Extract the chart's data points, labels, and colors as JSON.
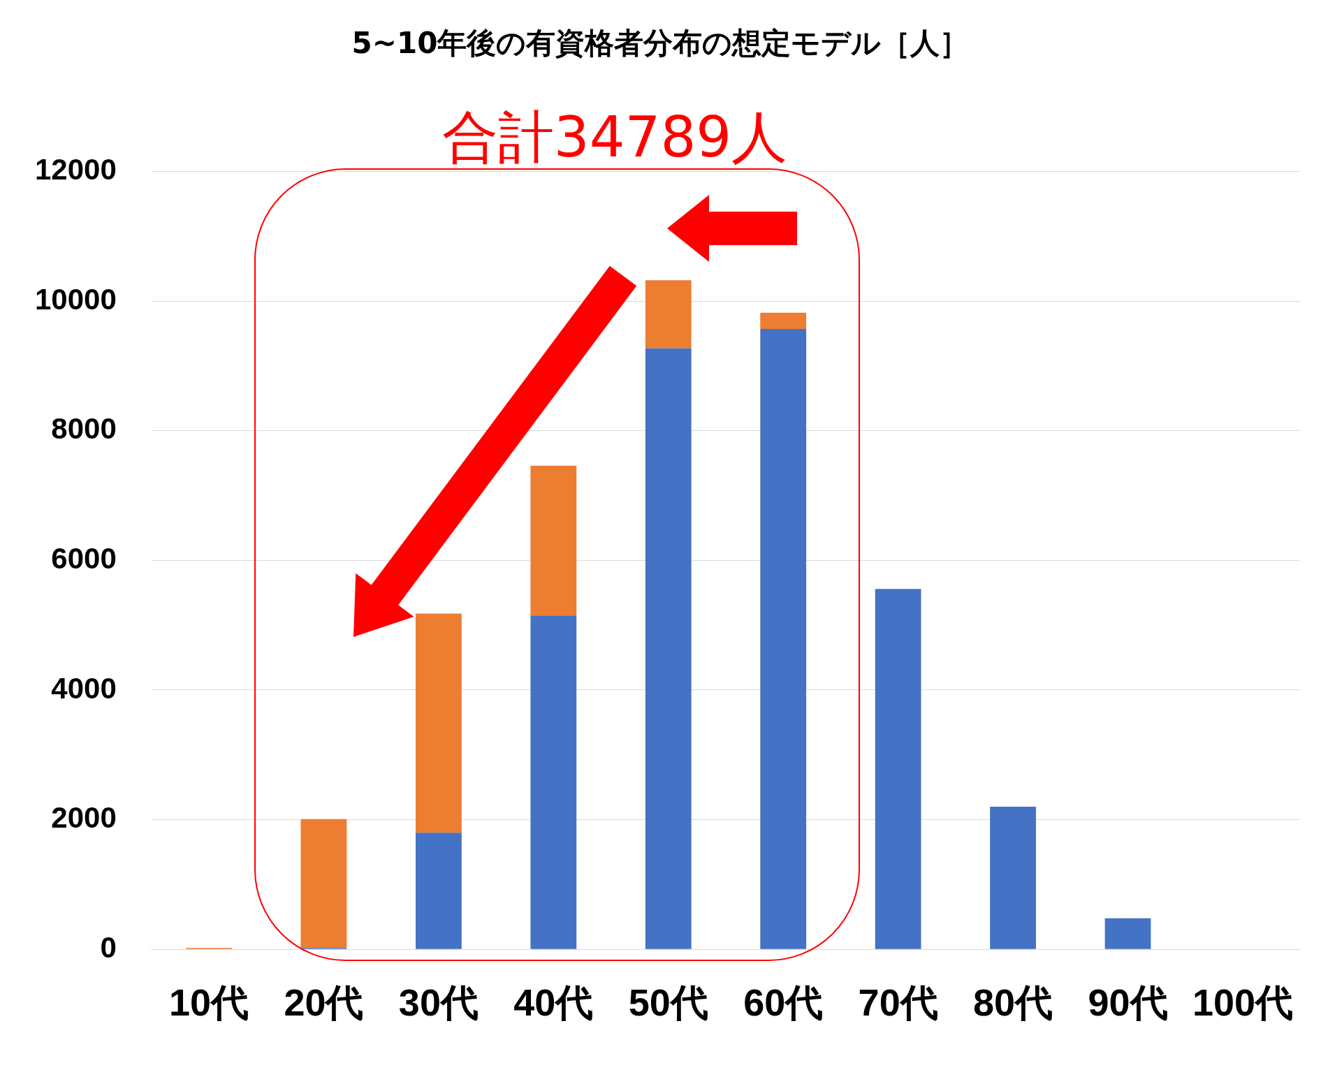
{
  "chart_data": {
    "type": "bar",
    "title": "5~10年後の有資格者分布の想定モデル［人］",
    "categories": [
      "10代",
      "20代",
      "30代",
      "40代",
      "50代",
      "60代",
      "70代",
      "80代",
      "90代",
      "100代"
    ],
    "stacked": true,
    "series": [
      {
        "color": "#4472c4",
        "values": [
          0,
          20,
          1800,
          5150,
          9270,
          9570,
          5560,
          2200,
          480,
          0
        ]
      },
      {
        "color": "#ed7d31",
        "values": [
          20,
          1990,
          3380,
          2310,
          1050,
          250,
          0,
          0,
          0,
          0
        ]
      }
    ],
    "ylim": [
      0,
      12000
    ],
    "yticks": [
      0,
      2000,
      4000,
      6000,
      8000,
      10000,
      12000
    ],
    "grid": "y",
    "legend": false,
    "annotations": [
      "合計34789人"
    ]
  }
}
